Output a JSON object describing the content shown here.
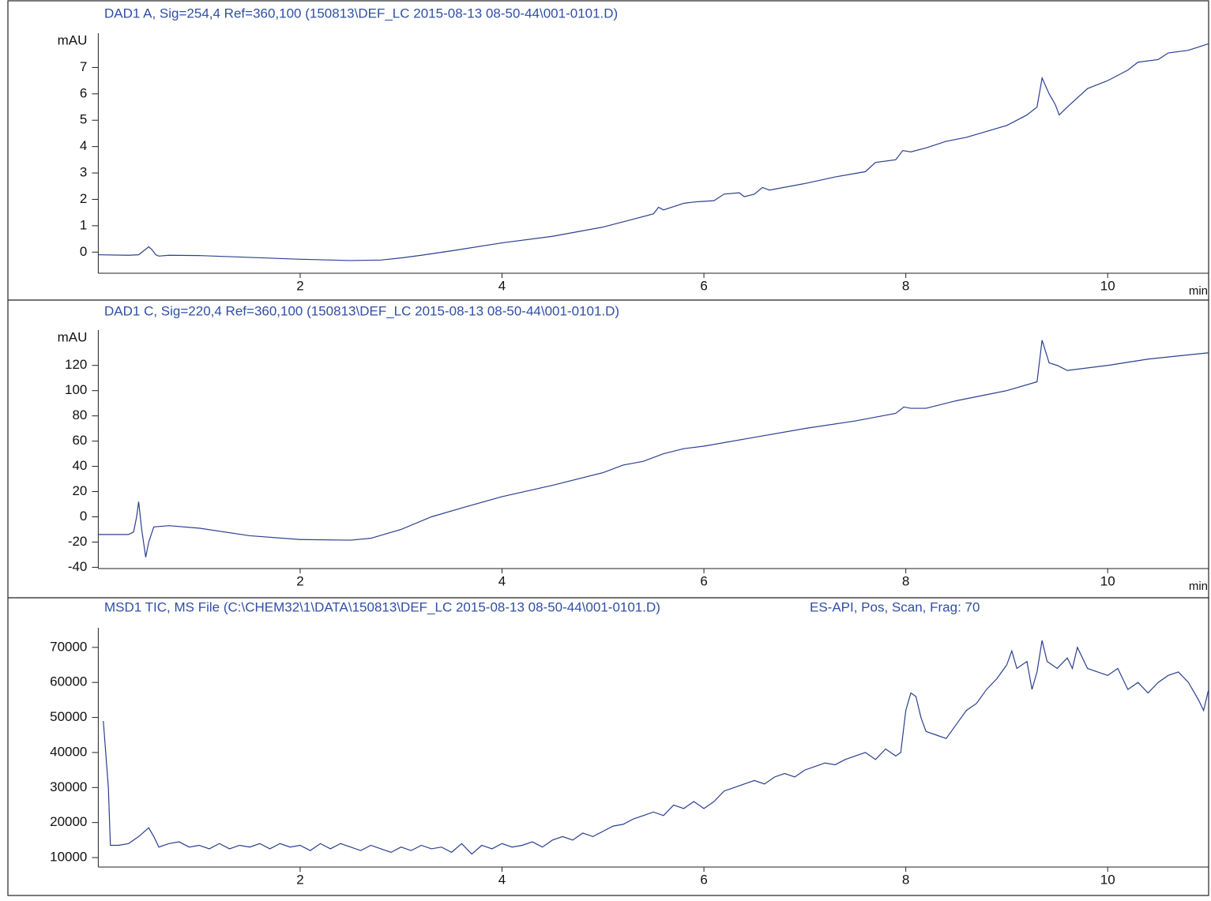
{
  "chart_data": [
    {
      "type": "line",
      "title": "DAD1 A, Sig=254,4 Ref=360,100 (150813\\DEF_LC 2015-08-13 08-50-44\\001-0101.D)",
      "y_label": "mAU",
      "x_label": "min",
      "xlim": [
        0,
        11
      ],
      "xticks": [
        2,
        4,
        6,
        8,
        10
      ],
      "ylim": [
        -0.8,
        8.3
      ],
      "yticks": [
        0,
        1,
        2,
        3,
        4,
        5,
        6,
        7
      ],
      "series": [
        {
          "color": "#2b3f8f",
          "x": [
            0,
            0.3,
            0.4,
            0.45,
            0.5,
            0.53,
            0.57,
            0.6,
            0.7,
            1.0,
            1.5,
            2.0,
            2.5,
            2.8,
            3.0,
            3.2,
            3.5,
            4.0,
            4.5,
            5.0,
            5.3,
            5.5,
            5.55,
            5.6,
            5.8,
            5.9,
            6.1,
            6.2,
            6.35,
            6.4,
            6.5,
            6.58,
            6.65,
            7.0,
            7.3,
            7.6,
            7.7,
            7.9,
            7.97,
            8.05,
            8.2,
            8.4,
            8.6,
            9.0,
            9.2,
            9.3,
            9.35,
            9.42,
            9.48,
            9.52,
            9.6,
            9.8,
            10.0,
            10.2,
            10.3,
            10.5,
            10.6,
            10.8,
            11.0
          ],
          "values": [
            -0.1,
            -0.12,
            -0.1,
            0.05,
            0.2,
            0.1,
            -0.1,
            -0.15,
            -0.12,
            -0.13,
            -0.2,
            -0.27,
            -0.32,
            -0.3,
            -0.22,
            -0.12,
            0.05,
            0.35,
            0.6,
            0.95,
            1.25,
            1.45,
            1.7,
            1.6,
            1.85,
            1.9,
            1.95,
            2.2,
            2.25,
            2.1,
            2.2,
            2.45,
            2.35,
            2.6,
            2.85,
            3.05,
            3.4,
            3.5,
            3.85,
            3.8,
            3.95,
            4.2,
            4.35,
            4.8,
            5.2,
            5.5,
            6.6,
            6.0,
            5.6,
            5.2,
            5.5,
            6.2,
            6.5,
            6.9,
            7.2,
            7.3,
            7.55,
            7.65,
            7.9
          ]
        }
      ]
    },
    {
      "type": "line",
      "title": "DAD1 C, Sig=220,4 Ref=360,100 (150813\\DEF_LC 2015-08-13 08-50-44\\001-0101.D)",
      "y_label": "mAU",
      "x_label": "min",
      "xlim": [
        0,
        11
      ],
      "xticks": [
        2,
        4,
        6,
        8,
        10
      ],
      "ylim": [
        -41,
        148
      ],
      "yticks": [
        -40,
        -20,
        0,
        20,
        40,
        60,
        80,
        100,
        120
      ],
      "series": [
        {
          "color": "#2b3f8f",
          "x": [
            0,
            0.3,
            0.35,
            0.38,
            0.4,
            0.43,
            0.47,
            0.5,
            0.55,
            0.7,
            1.0,
            1.5,
            2.0,
            2.5,
            2.7,
            3.0,
            3.3,
            3.6,
            4.0,
            4.5,
            5.0,
            5.2,
            5.4,
            5.6,
            5.8,
            6.0,
            6.5,
            7.0,
            7.5,
            7.9,
            7.98,
            8.05,
            8.2,
            8.5,
            9.0,
            9.3,
            9.35,
            9.42,
            9.5,
            9.6,
            10.0,
            10.4,
            11.0
          ],
          "values": [
            -14,
            -14,
            -12,
            0,
            12,
            -10,
            -32,
            -20,
            -8,
            -7,
            -9,
            -15,
            -18,
            -18.5,
            -17,
            -10,
            0,
            7,
            16,
            25,
            35,
            41,
            44,
            50,
            54,
            56,
            63,
            70,
            76,
            82,
            87,
            86,
            86,
            92,
            100,
            107,
            140,
            122,
            120,
            116,
            120,
            125,
            130
          ]
        }
      ]
    },
    {
      "type": "line",
      "title": "MSD1 TIC, MS File (C:\\CHEM32\\1\\DATA\\150813\\DEF_LC 2015-08-13 08-50-44\\001-0101.D)",
      "subtitle": "ES-API, Pos, Scan, Frag: 70",
      "xlim": [
        0,
        11
      ],
      "xticks": [
        2,
        4,
        6,
        8,
        10
      ],
      "ylim": [
        7300,
        75600
      ],
      "yticks": [
        10000,
        20000,
        30000,
        40000,
        50000,
        60000,
        70000
      ],
      "series": [
        {
          "color": "#2b3f8f",
          "x": [
            0.05,
            0.1,
            0.12,
            0.2,
            0.3,
            0.4,
            0.5,
            0.55,
            0.6,
            0.7,
            0.8,
            0.9,
            1.0,
            1.1,
            1.2,
            1.3,
            1.4,
            1.5,
            1.6,
            1.7,
            1.8,
            1.9,
            2.0,
            2.1,
            2.2,
            2.3,
            2.4,
            2.5,
            2.6,
            2.7,
            2.8,
            2.9,
            3.0,
            3.1,
            3.2,
            3.3,
            3.4,
            3.5,
            3.6,
            3.7,
            3.8,
            3.9,
            4.0,
            4.1,
            4.2,
            4.3,
            4.4,
            4.5,
            4.6,
            4.7,
            4.8,
            4.9,
            5.0,
            5.1,
            5.2,
            5.3,
            5.4,
            5.5,
            5.6,
            5.7,
            5.8,
            5.9,
            6.0,
            6.1,
            6.2,
            6.3,
            6.4,
            6.5,
            6.6,
            6.7,
            6.8,
            6.9,
            7.0,
            7.1,
            7.2,
            7.3,
            7.4,
            7.5,
            7.6,
            7.7,
            7.8,
            7.9,
            7.95,
            8.0,
            8.05,
            8.1,
            8.15,
            8.2,
            8.3,
            8.4,
            8.5,
            8.6,
            8.7,
            8.8,
            8.9,
            9.0,
            9.05,
            9.1,
            9.2,
            9.25,
            9.3,
            9.35,
            9.4,
            9.5,
            9.6,
            9.65,
            9.7,
            9.8,
            9.9,
            10.0,
            10.1,
            10.2,
            10.3,
            10.4,
            10.5,
            10.6,
            10.7,
            10.8,
            10.9,
            10.95,
            11.0
          ],
          "values": [
            49000,
            30000,
            13500,
            13500,
            14000,
            16000,
            18500,
            16000,
            13000,
            14000,
            14500,
            13000,
            13500,
            12500,
            14000,
            12500,
            13500,
            13000,
            14000,
            12500,
            14000,
            13000,
            13500,
            12000,
            14000,
            12500,
            14000,
            13000,
            12000,
            13500,
            12500,
            11500,
            13000,
            12000,
            13500,
            12500,
            13000,
            11500,
            14000,
            11000,
            13500,
            12500,
            14000,
            13000,
            13500,
            14500,
            13000,
            15000,
            16000,
            15000,
            17000,
            16000,
            17500,
            19000,
            19500,
            21000,
            22000,
            23000,
            22000,
            25000,
            24000,
            26000,
            24000,
            26000,
            29000,
            30000,
            31000,
            32000,
            31000,
            33000,
            34000,
            33000,
            35000,
            36000,
            37000,
            36500,
            38000,
            39000,
            40000,
            38000,
            41000,
            39000,
            40000,
            52000,
            57000,
            56000,
            50000,
            46000,
            45000,
            44000,
            48000,
            52000,
            54000,
            58000,
            61000,
            65000,
            69000,
            64000,
            66000,
            58000,
            63000,
            72000,
            66000,
            64000,
            67000,
            64000,
            70000,
            64000,
            63000,
            62000,
            64000,
            58000,
            60000,
            57000,
            60000,
            62000,
            63000,
            60000,
            55000,
            52000,
            58000
          ]
        }
      ]
    }
  ]
}
